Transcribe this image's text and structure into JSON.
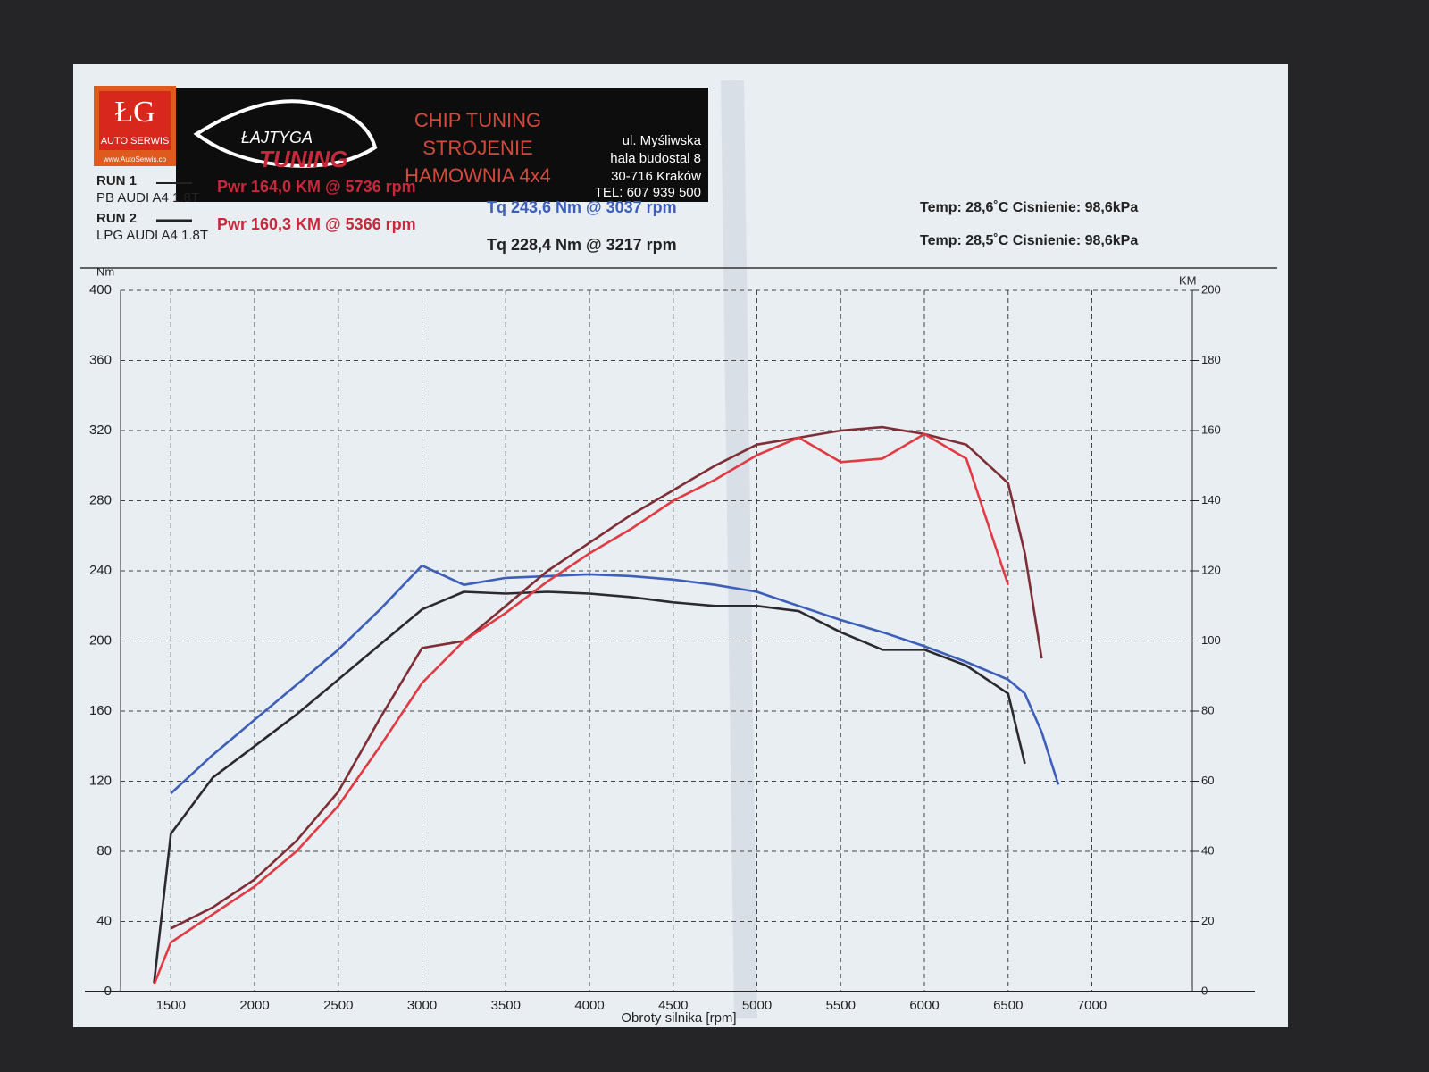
{
  "chart_data": {
    "type": "line",
    "header": {
      "logo_text": "ŁG",
      "logo_subtext": "AUTO SERWIS",
      "logo_url": "www.AutoSerwis.co",
      "brand_top": "ŁAJTYGA",
      "brand_bottom": "TUNING",
      "services": [
        "CHIP TUNING",
        "STROJENIE",
        "HAMOWNIA 4x4"
      ],
      "address": [
        "ul. Myśliwska",
        "hala budostal 8",
        "30-716 Kraków",
        "TEL: 607 939 500"
      ]
    },
    "runs": [
      {
        "label": "RUN 1",
        "car": "PB AUDI A4 1.8T",
        "power": "Pwr  164,0 KM @ 5736 rpm",
        "torque": "Tq 243,6 Nm @ 3037 rpm",
        "conditions": "Temp: 28,6˚C   Cisnienie: 98,6kPa"
      },
      {
        "label": "RUN 2",
        "car": "LPG AUDI A4 1.8T",
        "power": "Pwr  160,3 KM @ 5366 rpm",
        "torque": "Tq 228,4 Nm @ 3217 rpm",
        "conditions": "Temp: 28,5˚C   Cisnienie: 98,6kPa"
      }
    ],
    "y_label": "Nm",
    "y2_label": "KM",
    "x_label": "Obroty silnika [rpm]",
    "x": [
      1400,
      1500,
      1750,
      2000,
      2250,
      2500,
      2750,
      3000,
      3250,
      3500,
      3750,
      4000,
      4250,
      4500,
      4750,
      5000,
      5250,
      5500,
      5750,
      6000,
      6250,
      6500,
      6600,
      6700,
      6800
    ],
    "xlim": [
      1200,
      7600
    ],
    "xticks": [
      1500,
      2000,
      2500,
      3000,
      3500,
      4000,
      4500,
      5000,
      5500,
      6000,
      6500,
      7000
    ],
    "ylim": [
      0,
      400
    ],
    "yticks": [
      0,
      40,
      80,
      120,
      160,
      200,
      240,
      280,
      320,
      360,
      400
    ],
    "y2lim": [
      0,
      200
    ],
    "y2ticks": [
      0,
      20,
      40,
      60,
      80,
      100,
      120,
      140,
      160,
      180,
      200
    ],
    "grid": true,
    "series": [
      {
        "color": "#3d5fb8",
        "values": [
          null,
          113,
          135,
          155,
          175,
          195,
          218,
          243,
          232,
          236,
          237,
          238,
          237,
          235,
          232,
          228,
          220,
          212,
          205,
          197,
          188,
          178,
          170,
          148,
          118
        ]
      },
      {
        "color": "#2a2a30",
        "values": [
          5,
          90,
          122,
          140,
          158,
          178,
          198,
          218,
          228,
          227,
          228,
          227,
          225,
          222,
          220,
          220,
          217,
          205,
          195,
          195,
          186,
          170,
          130,
          null,
          null
        ]
      },
      {
        "color": "#7e2f36",
        "axis": "y2",
        "values": [
          null,
          18,
          24,
          32,
          43,
          57,
          78,
          98,
          100,
          110,
          120,
          128,
          136,
          143,
          150,
          156,
          158,
          160,
          161,
          159,
          156,
          145,
          125,
          95,
          null
        ]
      },
      {
        "color": "#e23a42",
        "axis": "y2",
        "values": [
          2,
          14,
          22,
          30,
          40,
          53,
          70,
          88,
          100,
          108,
          117,
          125,
          132,
          140,
          146,
          153,
          158,
          151,
          152,
          159,
          152,
          116,
          null,
          null,
          null
        ]
      }
    ]
  }
}
